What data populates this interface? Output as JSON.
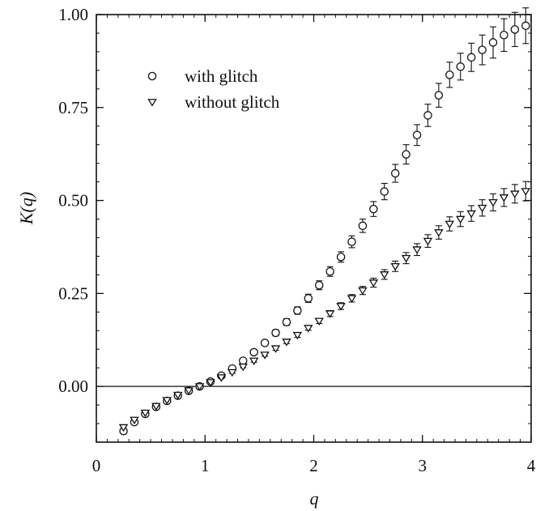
{
  "chart_data": {
    "type": "scatter",
    "xlabel": "q",
    "ylabel": "K(q)",
    "xlim": [
      0,
      4
    ],
    "ylim": [
      -0.15,
      1.0
    ],
    "x_ticks": [
      0,
      1,
      2,
      3,
      4
    ],
    "x_tick_labels": [
      "0",
      "1",
      "2",
      "3",
      "4"
    ],
    "y_ticks": [
      0.0,
      0.25,
      0.5,
      0.75,
      1.0
    ],
    "y_tick_labels": [
      "0.00",
      "0.25",
      "0.50",
      "0.75",
      "1.00"
    ],
    "reference_line_y": 0,
    "grid": false,
    "legend_position": "top-left",
    "series": [
      {
        "name": "with glitch",
        "marker": "circle",
        "x": [
          0.25,
          0.35,
          0.45,
          0.55,
          0.65,
          0.75,
          0.85,
          0.95,
          1.05,
          1.15,
          1.25,
          1.35,
          1.45,
          1.55,
          1.65,
          1.75,
          1.85,
          1.95,
          2.05,
          2.15,
          2.25,
          2.35,
          2.45,
          2.55,
          2.65,
          2.75,
          2.85,
          2.95,
          3.05,
          3.15,
          3.25,
          3.35,
          3.45,
          3.55,
          3.65,
          3.75,
          3.85,
          3.95
        ],
        "y": [
          -0.12,
          -0.096,
          -0.074,
          -0.055,
          -0.039,
          -0.025,
          -0.012,
          0.0,
          0.013,
          0.029,
          0.048,
          0.069,
          0.092,
          0.117,
          0.144,
          0.173,
          0.204,
          0.237,
          0.272,
          0.309,
          0.348,
          0.389,
          0.432,
          0.477,
          0.524,
          0.573,
          0.624,
          0.676,
          0.729,
          0.783,
          0.838,
          0.86,
          0.885,
          0.905,
          0.925,
          0.945,
          0.96,
          0.97
        ],
        "error": [
          0.0,
          0.0,
          0.0,
          0.0,
          0.0,
          0.0,
          0.0,
          0.0,
          0.002,
          0.003,
          0.004,
          0.005,
          0.006,
          0.007,
          0.008,
          0.009,
          0.01,
          0.011,
          0.012,
          0.013,
          0.014,
          0.016,
          0.018,
          0.02,
          0.022,
          0.024,
          0.026,
          0.028,
          0.03,
          0.032,
          0.034,
          0.036,
          0.038,
          0.04,
          0.042,
          0.044,
          0.046,
          0.048
        ]
      },
      {
        "name": "without glitch",
        "marker": "triangle-down",
        "x": [
          0.25,
          0.35,
          0.45,
          0.55,
          0.65,
          0.75,
          0.85,
          0.95,
          1.05,
          1.15,
          1.25,
          1.35,
          1.45,
          1.55,
          1.65,
          1.75,
          1.85,
          1.95,
          2.05,
          2.15,
          2.25,
          2.35,
          2.45,
          2.55,
          2.65,
          2.75,
          2.85,
          2.95,
          3.05,
          3.15,
          3.25,
          3.35,
          3.45,
          3.55,
          3.65,
          3.75,
          3.85,
          3.95
        ],
        "y": [
          -0.11,
          -0.09,
          -0.071,
          -0.053,
          -0.037,
          -0.023,
          -0.011,
          0.0,
          0.011,
          0.024,
          0.038,
          0.053,
          0.069,
          0.085,
          0.102,
          0.12,
          0.138,
          0.157,
          0.176,
          0.196,
          0.216,
          0.237,
          0.258,
          0.279,
          0.301,
          0.323,
          0.345,
          0.368,
          0.391,
          0.414,
          0.437,
          0.45,
          0.465,
          0.48,
          0.495,
          0.508,
          0.518,
          0.525
        ],
        "error": [
          0.0,
          0.0,
          0.0,
          0.0,
          0.0,
          0.0,
          0.0,
          0.0,
          0.002,
          0.002,
          0.003,
          0.003,
          0.004,
          0.004,
          0.005,
          0.005,
          0.006,
          0.006,
          0.007,
          0.008,
          0.009,
          0.01,
          0.011,
          0.012,
          0.013,
          0.014,
          0.015,
          0.016,
          0.017,
          0.018,
          0.019,
          0.02,
          0.021,
          0.022,
          0.023,
          0.024,
          0.025,
          0.026
        ]
      }
    ]
  }
}
